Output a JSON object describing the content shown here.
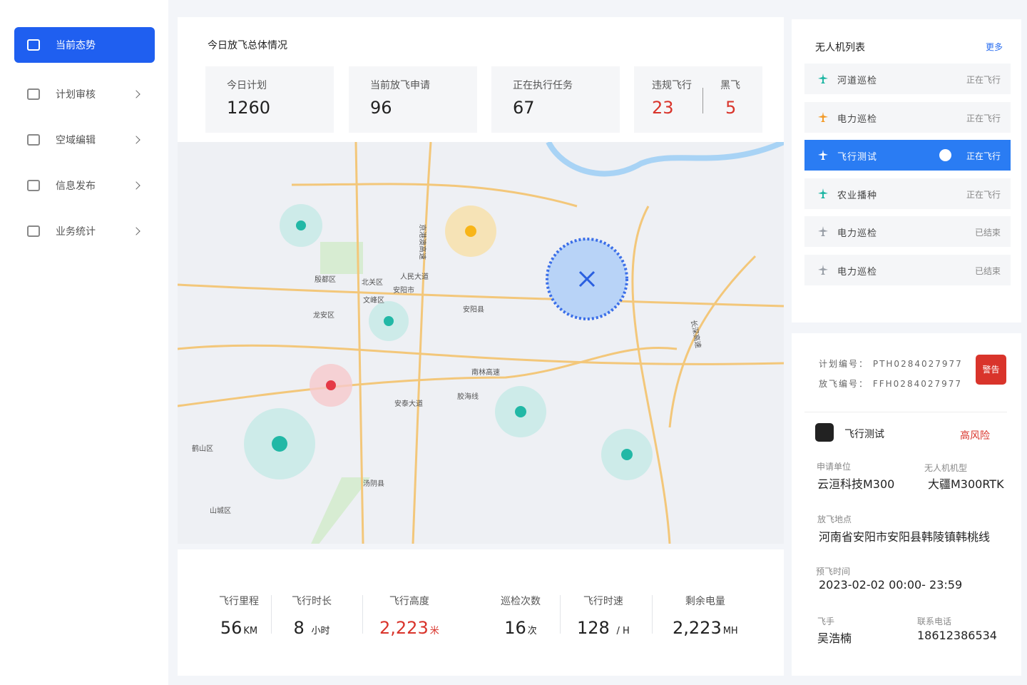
{
  "sidebar": {
    "items": [
      "当前态势",
      "计划审核",
      "空域编辑",
      "信息发布",
      "业务统计"
    ]
  },
  "overview": {
    "title": "今日放飞总体情况",
    "stats": [
      {
        "label": "今日计划",
        "value": "1260"
      },
      {
        "label": "当前放飞申请",
        "value": "96"
      },
      {
        "label": "正在执行任务",
        "value": "67"
      }
    ],
    "violations": [
      {
        "label": "违规飞行",
        "value": "23"
      },
      {
        "label": "黑飞",
        "value": "5"
      }
    ]
  },
  "map": {
    "labels": [
      "安阳市",
      "北关区",
      "文峰区",
      "龙安区",
      "殷都区",
      "安阳县",
      "汤阴县",
      "鹤山区",
      "山城区",
      "南林高速",
      "胶海线",
      "京港澳高速",
      "人民大道",
      "安泰大道",
      "长深高速"
    ]
  },
  "flight_stats": [
    {
      "label": "飞行里程",
      "value": "56",
      "unit": "KM"
    },
    {
      "label": "飞行时长",
      "value": "8",
      "unit": "小时"
    },
    {
      "label": "飞行高度",
      "value": "2,223",
      "unit": "米"
    },
    {
      "label": "巡检次数",
      "value": "16",
      "unit": "次"
    },
    {
      "label": "飞行时速",
      "value": "128",
      "unit": "/ H"
    },
    {
      "label": "剩余电量",
      "value": "2,223",
      "unit": "MH"
    }
  ],
  "drone_list": {
    "title": "无人机列表",
    "more": "更多",
    "items": [
      {
        "name": "河道巡检",
        "status": "正在飞行"
      },
      {
        "name": "电力巡检",
        "status": "正在飞行"
      },
      {
        "name": "飞行测试",
        "status": "正在飞行"
      },
      {
        "name": "农业播种",
        "status": "正在飞行"
      },
      {
        "name": "电力巡检",
        "status": "已结束"
      },
      {
        "name": "电力巡检",
        "status": "已结束"
      }
    ]
  },
  "detail": {
    "plan_no_label": "计划编号：",
    "plan_no": "PTH0284027977",
    "flight_no_label": "放飞编号：",
    "flight_no": "FFH0284027977",
    "alert": "警告",
    "name": "飞行测试",
    "risk": "高风险",
    "fields": [
      {
        "label": "申请单位",
        "value": "云洹科技M300"
      },
      {
        "label": "无人机机型",
        "value": "大疆M300RTK"
      },
      {
        "label": "放飞地点",
        "value": "河南省安阳市安阳县韩陵镇韩桃线"
      },
      {
        "label": "预飞时间",
        "value": "2023-02-02 00:00- 23:59"
      },
      {
        "label": "飞手",
        "value": "吴浩楠"
      },
      {
        "label": "联系电话",
        "value": "18612386534"
      }
    ]
  }
}
